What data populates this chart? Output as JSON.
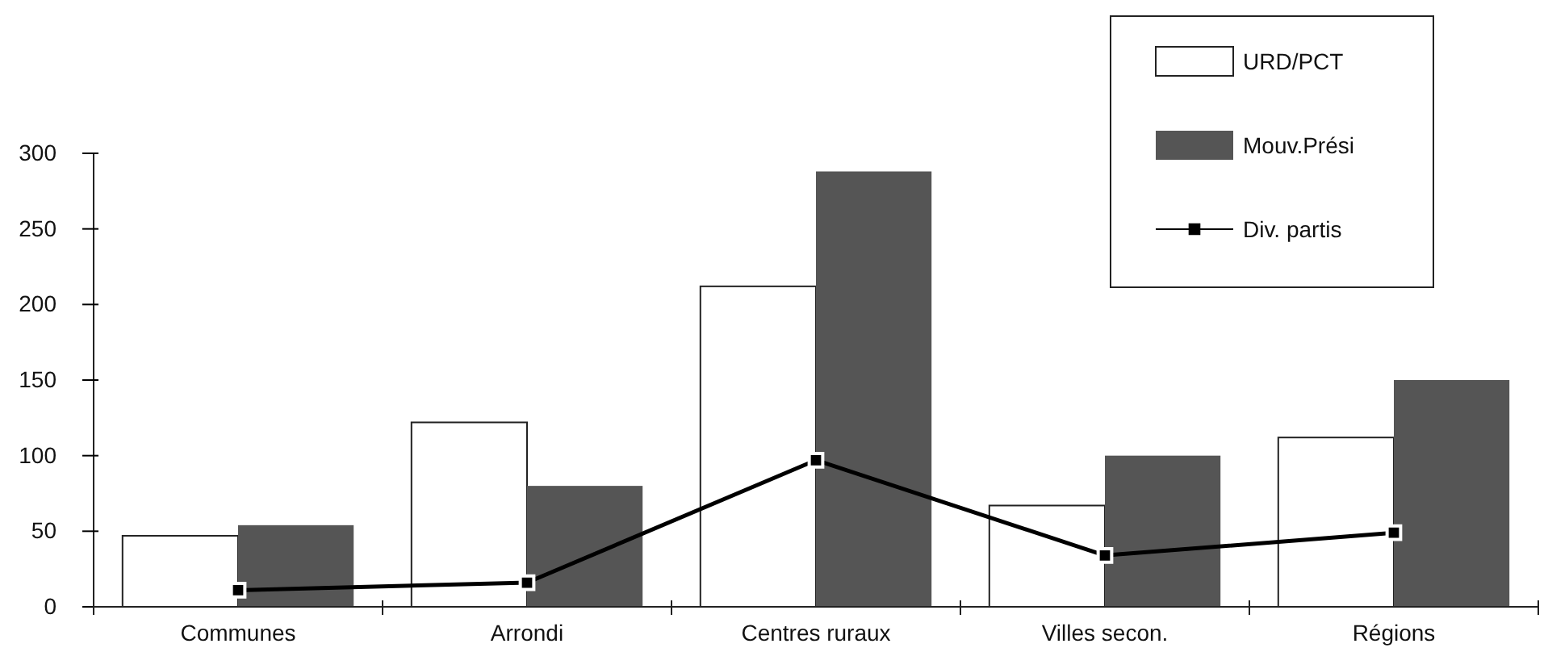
{
  "chart_data": {
    "type": "bar",
    "categories": [
      "Communes",
      "Arrondi",
      "Centres ruraux",
      "Villes secon.",
      "Régions"
    ],
    "series": [
      {
        "name": "URD/PCT",
        "color": "#ffffff",
        "values": [
          47,
          122,
          212,
          67,
          112
        ]
      },
      {
        "name": "Mouv.Prési",
        "color": "#555555",
        "values": [
          54,
          80,
          288,
          100,
          150
        ]
      },
      {
        "name": "Div. partis",
        "type": "line",
        "color": "#000000",
        "values": [
          11,
          16,
          97,
          34,
          49
        ]
      }
    ],
    "ylim": [
      0,
      300
    ],
    "yticks": [
      0,
      50,
      100,
      150,
      200,
      250,
      300
    ],
    "legend": "top right",
    "marker": "square"
  }
}
